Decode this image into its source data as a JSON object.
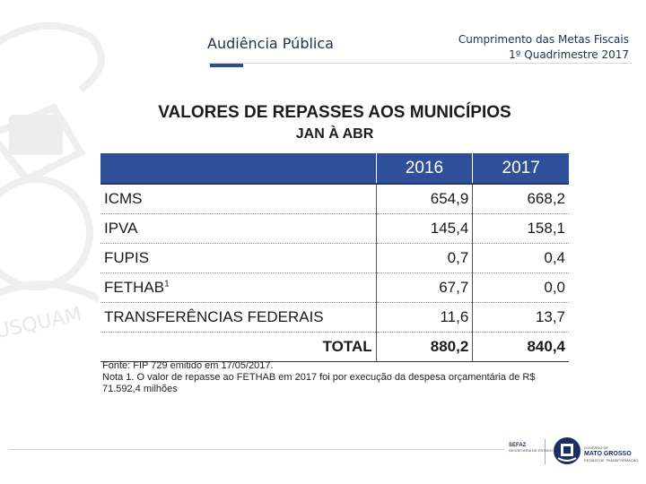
{
  "header": {
    "title": "Audiência Pública",
    "subtitle_line1": "Cumprimento das Metas Fiscais",
    "subtitle_line2": "1º Quadrimestre 2017"
  },
  "table": {
    "title": "VALORES DE REPASSES AOS MUNICÍPIOS",
    "subtitle": "JAN À ABR",
    "columns": [
      "",
      "2016",
      "2017"
    ],
    "rows": [
      {
        "label": "ICMS",
        "sup": "",
        "v2016": "654,9",
        "v2017": "668,2"
      },
      {
        "label": "IPVA",
        "sup": "",
        "v2016": "145,4",
        "v2017": "158,1"
      },
      {
        "label": "FUPIS",
        "sup": "",
        "v2016": "0,7",
        "v2017": "0,4"
      },
      {
        "label": "FETHAB",
        "sup": "1",
        "v2016": "67,7",
        "v2017": "0,0"
      },
      {
        "label": "TRANSFERÊNCIAS FEDERAIS",
        "sup": "",
        "v2016": "11,6",
        "v2017": "13,7"
      }
    ],
    "total": {
      "label": "TOTAL",
      "v2016": "880,2",
      "v2017": "840,4"
    },
    "header_color": "#2f4f9a"
  },
  "notes": {
    "source": "Fonte: FIP 729 emitido em 17/05/2017.",
    "note1_line1": "Nota 1. O valor de repasse ao FETHAB em 2017 foi por execução da despesa orçamentária de R$",
    "note1_line2": "71.592,4 milhões"
  },
  "footer": {
    "sefaz": "SEFAZ",
    "sefaz_sub": "SECRETARIA DE ESTADO DE FAZENDA",
    "gov_line1": "GOVERNO DE",
    "gov_name": "MATO GROSSO",
    "gov_sub": "ESTADO DE TRANSFORMAÇÃO"
  },
  "watermark_text": "USQUAM"
}
